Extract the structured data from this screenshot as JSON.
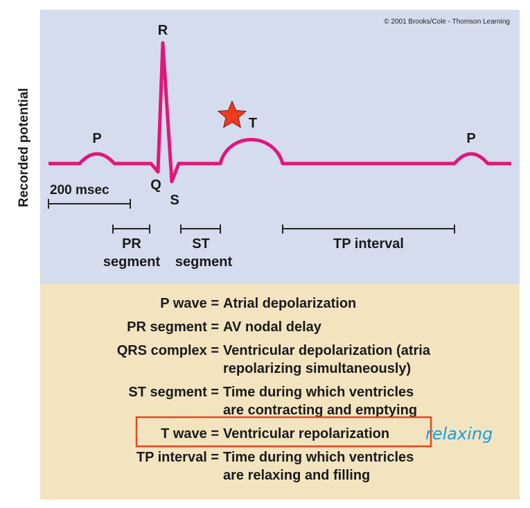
{
  "copyright": "© 2001 Brooks/Cole - Thomson Learning",
  "colors": {
    "graph_bg": "#d5dcee",
    "legend_bg": "#f3e4c0",
    "trace": "#e0177a",
    "star": "#ee3a1e",
    "highlight_box": "#e8461e",
    "annotation": "#1a9de0"
  },
  "axis": {
    "ylabel": "Recorded potential"
  },
  "waves": {
    "p1": "P",
    "q": "Q",
    "r": "R",
    "s": "S",
    "t": "T",
    "p2": "P"
  },
  "scale": {
    "label": "200 msec"
  },
  "intervals": {
    "pr_line1": "PR",
    "pr_line2": "segment",
    "st_line1": "ST",
    "st_line2": "segment",
    "tp": "TP interval"
  },
  "legend": {
    "p_wave": {
      "term": "P wave =",
      "def1": "Atrial depolarization"
    },
    "pr_segment": {
      "term": "PR segment =",
      "def1": "AV nodal delay"
    },
    "qrs_complex": {
      "term": "QRS complex =",
      "def1": "Ventricular depolarization (atria",
      "def2": "repolarizing simultaneously)"
    },
    "st_segment": {
      "term": "ST segment =",
      "def1": "Time during which ventricles",
      "def2": "are contracting and emptying"
    },
    "t_wave": {
      "term": "T wave =",
      "def1": "Ventricular repolarization"
    },
    "tp_interval": {
      "term": "TP interval =",
      "def1": "Time during which ventricles",
      "def2": "are relaxing and filling"
    }
  },
  "annotation": {
    "text": "relaxing",
    "star_icon": "star-icon"
  }
}
